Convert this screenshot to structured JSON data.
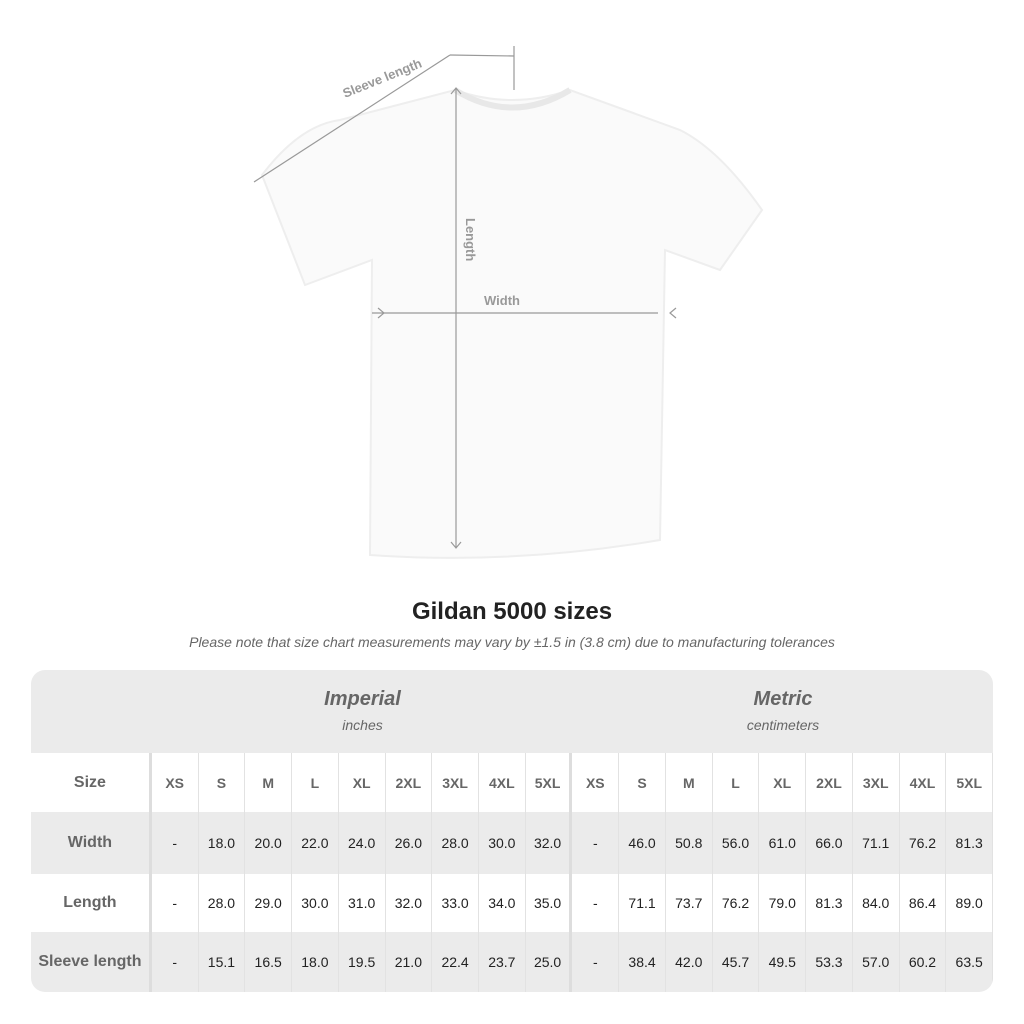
{
  "diagram": {
    "sleeve_label": "Sleeve length",
    "length_label": "Length",
    "width_label": "Width"
  },
  "title": "Gildan 5000 sizes",
  "note": "Please note that size chart measurements may vary by ±1.5 in (3.8 cm) due to manufacturing tolerances",
  "groups": [
    {
      "name": "Imperial",
      "unit": "inches"
    },
    {
      "name": "Metric",
      "unit": "centimeters"
    }
  ],
  "header": {
    "label": "Size",
    "sizes": [
      "XS",
      "S",
      "M",
      "L",
      "XL",
      "2XL",
      "3XL",
      "4XL",
      "5XL",
      "XS",
      "S",
      "M",
      "L",
      "XL",
      "2XL",
      "3XL",
      "4XL",
      "5XL"
    ]
  },
  "rows": [
    {
      "label": "Width",
      "values": [
        "-",
        "18.0",
        "20.0",
        "22.0",
        "24.0",
        "26.0",
        "28.0",
        "30.0",
        "32.0",
        "-",
        "46.0",
        "50.8",
        "56.0",
        "61.0",
        "66.0",
        "71.1",
        "76.2",
        "81.3"
      ]
    },
    {
      "label": "Length",
      "values": [
        "-",
        "28.0",
        "29.0",
        "30.0",
        "31.0",
        "32.0",
        "33.0",
        "34.0",
        "35.0",
        "-",
        "71.1",
        "73.7",
        "76.2",
        "79.0",
        "81.3",
        "84.0",
        "86.4",
        "89.0"
      ]
    },
    {
      "label": "Sleeve length",
      "values": [
        "-",
        "15.1",
        "16.5",
        "18.0",
        "19.5",
        "21.0",
        "22.4",
        "23.7",
        "25.0",
        "-",
        "38.4",
        "42.0",
        "45.7",
        "49.5",
        "53.3",
        "57.0",
        "60.2",
        "63.5"
      ]
    }
  ],
  "colors": {
    "band": "#ebebeb",
    "text": "#222222",
    "muted": "#666666",
    "measure": "#999999"
  }
}
